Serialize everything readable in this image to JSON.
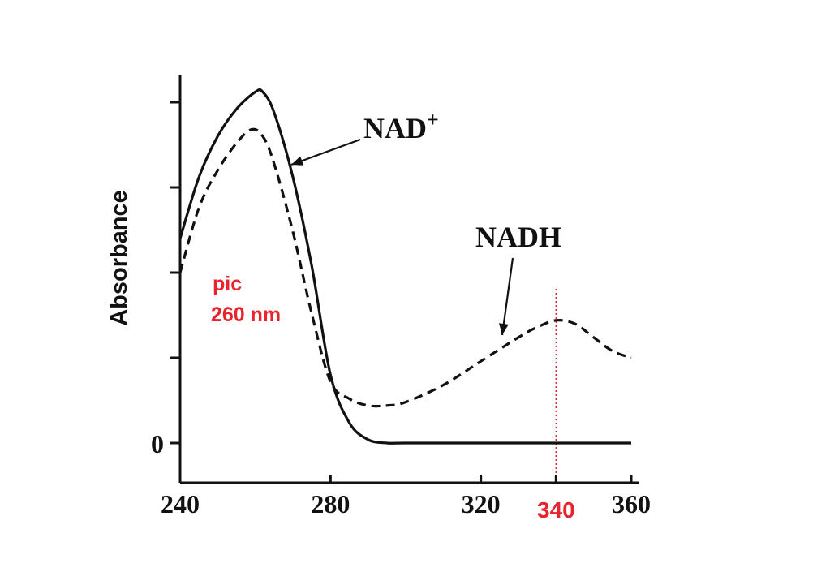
{
  "chart_data": {
    "type": "line",
    "title": "",
    "xlabel": "",
    "ylabel": "Absorbance",
    "xlim": [
      220,
      362
    ],
    "ylim": [
      -0.05,
      1.05
    ],
    "x_ticks": [
      240,
      280,
      320,
      340,
      360
    ],
    "x_tick_labels": [
      "240",
      "280",
      "320",
      "340",
      "360"
    ],
    "y_tick_values": [
      0,
      0.25,
      0.5,
      0.75,
      1.0
    ],
    "y_tick_labels": [
      "0"
    ],
    "highlight_tick": "340",
    "highlight_color": "#e8242c",
    "reference_line_x": 340,
    "grid": false,
    "series": [
      {
        "name": "NAD",
        "name_superscript": "+",
        "style": "solid",
        "x": [
          240,
          245,
          250,
          255,
          260,
          262,
          265,
          270,
          275,
          280,
          285,
          290,
          295,
          300,
          320,
          340,
          360
        ],
        "y": [
          0.6,
          0.78,
          0.9,
          0.98,
          1.03,
          1.03,
          0.97,
          0.78,
          0.52,
          0.2,
          0.06,
          0.01,
          0.0,
          0.0,
          0.0,
          0.0,
          0.0
        ]
      },
      {
        "name": "NADH",
        "style": "dashed",
        "x": [
          240,
          245,
          250,
          255,
          259,
          262,
          265,
          270,
          275,
          280,
          285,
          290,
          295,
          300,
          310,
          320,
          330,
          335,
          340,
          345,
          350,
          355,
          360
        ],
        "y": [
          0.5,
          0.69,
          0.8,
          0.88,
          0.92,
          0.9,
          0.82,
          0.62,
          0.38,
          0.18,
          0.13,
          0.11,
          0.11,
          0.12,
          0.17,
          0.24,
          0.31,
          0.34,
          0.36,
          0.35,
          0.31,
          0.27,
          0.25
        ]
      }
    ],
    "annotations": [
      {
        "text": "pic",
        "color": "#e8242c"
      },
      {
        "text": "260 nm",
        "color": "#e8242c"
      }
    ]
  }
}
